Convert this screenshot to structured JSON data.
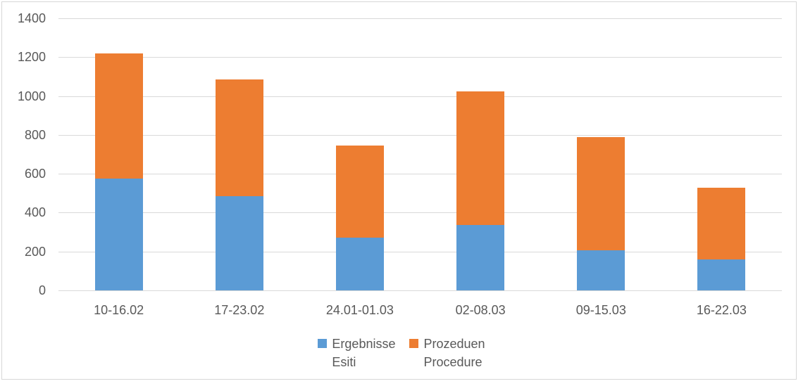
{
  "chart_data": {
    "type": "bar",
    "stacked": true,
    "title": "",
    "xlabel": "",
    "ylabel": "",
    "categories": [
      "10-16.02",
      "17-23.02",
      "24.01-01.03",
      "02-08.03",
      "09-15.03",
      "16-22.03"
    ],
    "series": [
      {
        "name": "Ergebnisse Esiti",
        "legend_lines": [
          "Ergebnisse",
          "Esiti"
        ],
        "color": "#5B9BD5",
        "values": [
          575,
          485,
          270,
          335,
          205,
          160
        ]
      },
      {
        "name": "Prozeduen Procedure",
        "legend_lines": [
          "Prozeduen",
          "Procedure"
        ],
        "color": "#ED7D31",
        "values": [
          645,
          600,
          475,
          690,
          585,
          370
        ]
      }
    ],
    "totals": [
      1220,
      1085,
      745,
      1025,
      790,
      530
    ],
    "ylim": [
      0,
      1400
    ],
    "yticks": [
      0,
      200,
      400,
      600,
      800,
      1000,
      1200,
      1400
    ],
    "grid": true,
    "legend_position": "bottom"
  },
  "colors": {
    "gridline": "#d9d9d9",
    "axis_text": "#595959",
    "chart_border": "#d7d7d7",
    "background": "#ffffff",
    "series_blue": "#5B9BD5",
    "series_orange": "#ED7D31"
  }
}
